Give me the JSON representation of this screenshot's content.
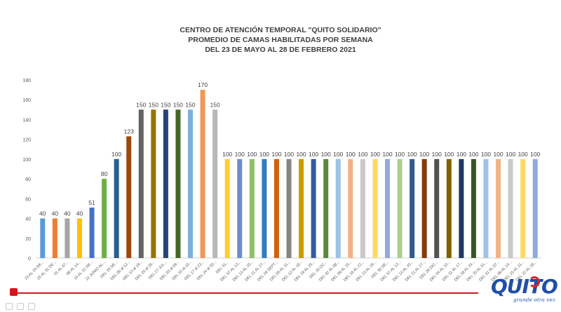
{
  "header": {
    "line1": "CENTRO DE ATENCIÓN TEMPORAL \"QUITO SOLIDARIO\"",
    "line2": "PROMEDIO DE CAMAS HABILITADAS POR SEMANA",
    "line3": "DEL 23 DE MAYO AL 28 DE FEBRERO 2021"
  },
  "logo": {
    "word": "QUITO",
    "tagline": "grande otra vez",
    "colors": {
      "text": "#1f4fa8",
      "accent": "#e02424"
    }
  },
  "player": {
    "progress": 0.0,
    "accent_color": "#d9141f",
    "controls": [
      "play-icon",
      "volume-icon",
      "settings-icon"
    ]
  },
  "chart_data": {
    "type": "bar",
    "title": "",
    "xlabel": "",
    "ylabel": "",
    "ylim": [
      0,
      180
    ],
    "yticks": [
      0,
      20,
      40,
      60,
      80,
      100,
      120,
      140,
      160,
      180
    ],
    "grid": false,
    "categories": [
      "23 AL 24 DE...",
      "25 AL 31 DE...",
      "01 AL 07...",
      "08 AL 14...",
      "15 AL 21 DE...",
      "22 JUNIO AL...",
      "DEL 29 DE...",
      "DEL 06 al 12...",
      "DEL 13 al 19...",
      "DEL 20 al 26...",
      "DEL 27 JUL...",
      "DEL 03 al 09...",
      "DEL 10 al 16...",
      "DEL 17 al 23...",
      "DEL 24 al 30...",
      "DEL 31...",
      "DEL 07 AL 13...",
      "DEL 14 AL 20...",
      "DEL 21 AL 27...",
      "DEL 28 SEPT...",
      "DEL 05 AL 11...",
      "DEL 12 AL 18...",
      "DEL 19 AL 25...",
      "DEL 26 OC...",
      "DEL 02 AL 08...",
      "DEL 09 AL 15...",
      "DEL 16 AL 22...",
      "DEL 23 AL 29...",
      "DEL 30 DE...",
      "DEL 07 AL 13...",
      "DEL 14 AL 20...",
      "DEL 21 AL 27...",
      "DEL 28 DIC...",
      "DEL 04 AL 10...",
      "DEL 11 AL 17...",
      "DEL 18 AL 24...",
      "DEL 25 AL 31...",
      "DEL 01 AL 07...",
      "DEL 08 AL 14...",
      "DEL 15 AL 21...",
      "DEL 22 AL 28..."
    ],
    "values": [
      40,
      40,
      40,
      40,
      51,
      80,
      100,
      123,
      150,
      150,
      150,
      150,
      150,
      170,
      150,
      100,
      100,
      100,
      100,
      100,
      100,
      100,
      100,
      100,
      100,
      100,
      100,
      100,
      100,
      100,
      100,
      100,
      100,
      100,
      100,
      100,
      100,
      100,
      100,
      100,
      100
    ],
    "colors": [
      "#5b9bd5",
      "#ed7d31",
      "#a5a5a5",
      "#ffc000",
      "#4472c4",
      "#70ad47",
      "#255e91",
      "#9e480e",
      "#636363",
      "#997300",
      "#264478",
      "#43682b",
      "#7cafdd",
      "#f1975a",
      "#b7b7b7",
      "#ffcd33",
      "#698ed0",
      "#8cc168",
      "#327dc2",
      "#d26012",
      "#848484",
      "#cc9a00",
      "#335aa1",
      "#5a8a39",
      "#9dc3e6",
      "#f4b183",
      "#c9c9c9",
      "#ffd966",
      "#8faadc",
      "#a9d18e",
      "#2e5c8a",
      "#843c0c",
      "#525252",
      "#7f6000",
      "#1f3864",
      "#385723",
      "#9dc3e6",
      "#f4b183",
      "#c9c9c9",
      "#ffd966",
      "#8faadc"
    ],
    "data_labels": true
  }
}
